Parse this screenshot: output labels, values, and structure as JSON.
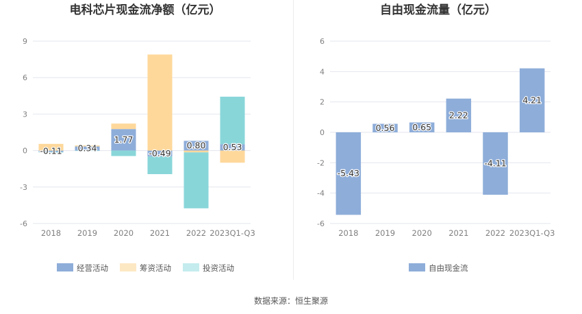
{
  "chart_data": [
    {
      "type": "bar",
      "title": "电科芯片现金流净额（亿元）",
      "categories": [
        "2018",
        "2019",
        "2020",
        "2021",
        "2022",
        "2023Q1-Q3"
      ],
      "series": [
        {
          "name": "经营活动",
          "color": "#8eadd9",
          "values": [
            -0.11,
            0.34,
            1.77,
            -0.49,
            0.8,
            0.53
          ]
        },
        {
          "name": "筹资活动",
          "color": "#fed89b",
          "values": [
            0.55,
            0.08,
            0.45,
            7.9,
            -0.15,
            -1.0
          ]
        },
        {
          "name": "投资活动",
          "color": "#89d6d9",
          "values": [
            -0.05,
            -0.03,
            -0.45,
            -1.45,
            -4.6,
            3.9
          ]
        }
      ],
      "data_labels": [
        "-0.11",
        "0.34",
        "1.77",
        "-0.49",
        "0.80",
        "0.53"
      ],
      "y_ticks": [
        "-6",
        "-3",
        "0",
        "3",
        "6",
        "9"
      ],
      "ylim": [
        -6,
        9
      ],
      "stacked": true,
      "legend_position": "bottom",
      "grid": true
    },
    {
      "type": "bar",
      "title": "自由现金流量（亿元）",
      "categories": [
        "2018",
        "2019",
        "2020",
        "2021",
        "2022",
        "2023Q1-Q3"
      ],
      "series": [
        {
          "name": "自由现金流",
          "color": "#8eadd9",
          "values": [
            -5.43,
            0.56,
            0.65,
            2.22,
            -4.11,
            4.21
          ]
        }
      ],
      "data_labels": [
        "-5.43",
        "0.56",
        "0.65",
        "2.22",
        "-4.11",
        "4.21"
      ],
      "y_ticks": [
        "-6",
        "-4",
        "-2",
        "0",
        "2",
        "4",
        "6"
      ],
      "ylim": [
        -6,
        6
      ],
      "legend_position": "bottom",
      "grid": true
    }
  ],
  "footer": {
    "source": "数据来源：恒生聚源"
  }
}
